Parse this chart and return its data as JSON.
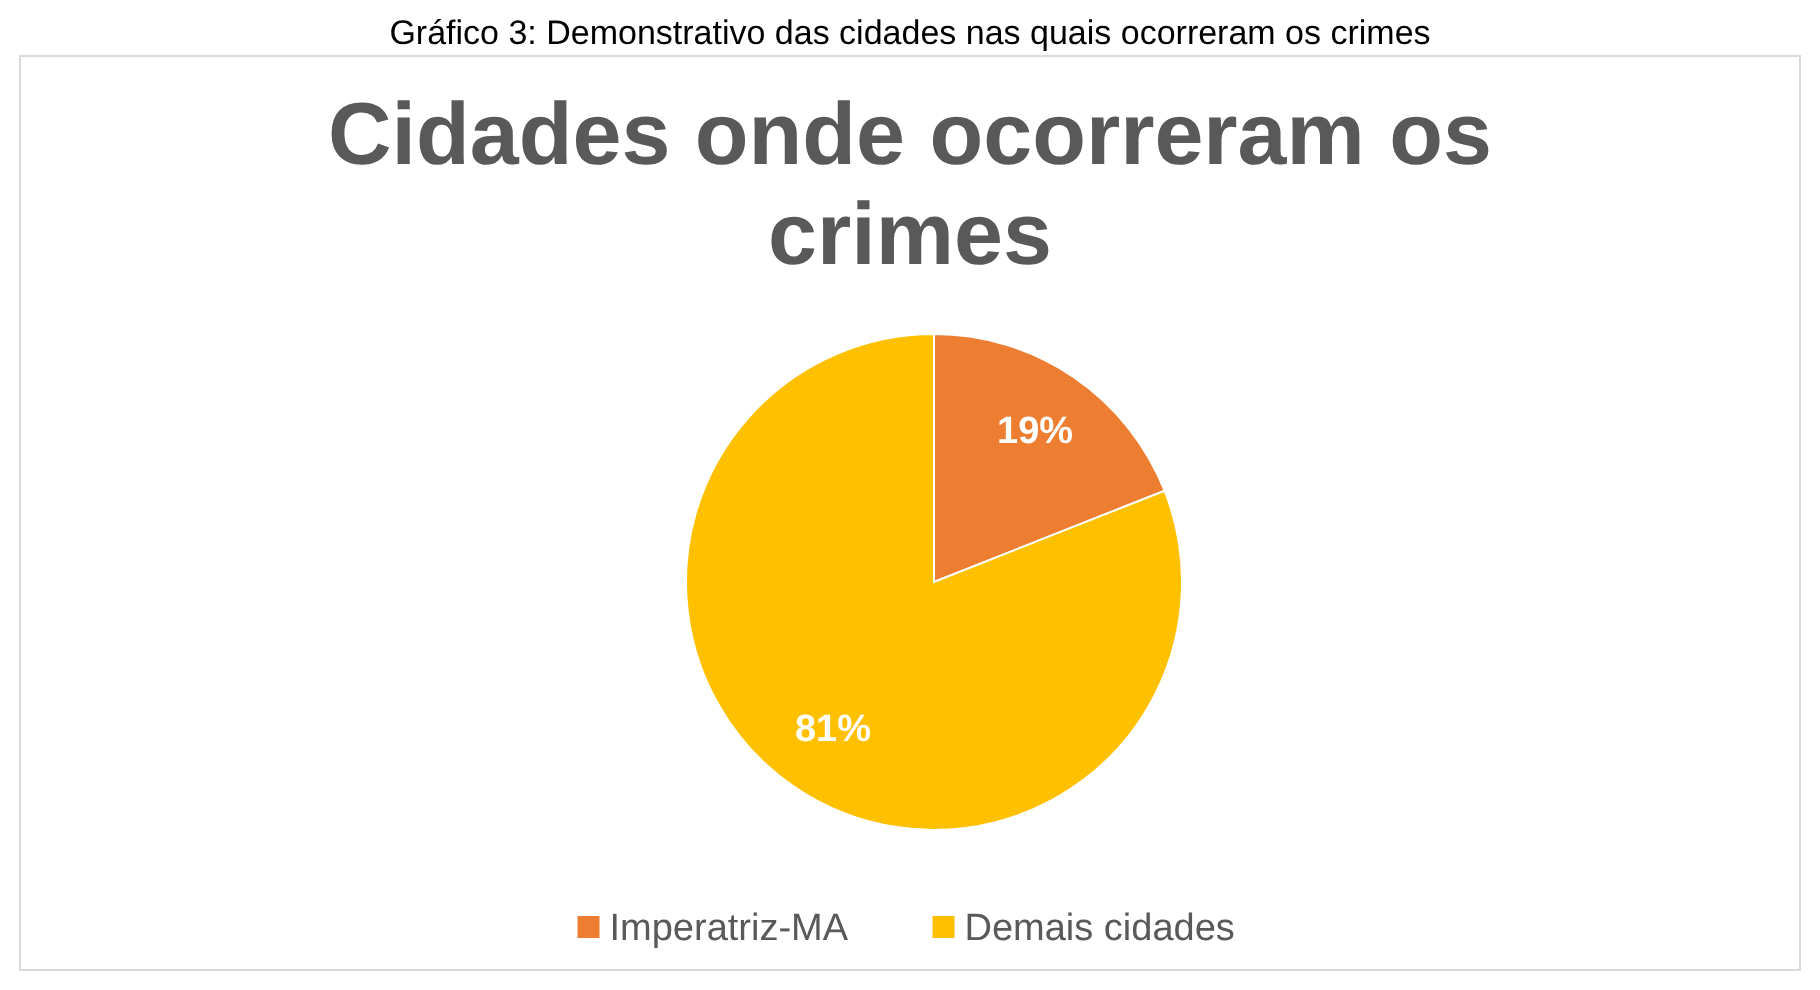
{
  "chart_data": {
    "type": "pie",
    "title": "Cidades onde ocorreram os crimes",
    "annotations": [
      "Gráfico 3: Demonstrativo das cidades nas quais ocorreram os crimes"
    ],
    "categories": [
      "Imperatriz-MA",
      "Demais cidades"
    ],
    "values": [
      19,
      81
    ],
    "colors": [
      "#ed7d31",
      "#ffc000"
    ],
    "value_labels": [
      "19%",
      "81%"
    ],
    "legend": "bottom"
  }
}
